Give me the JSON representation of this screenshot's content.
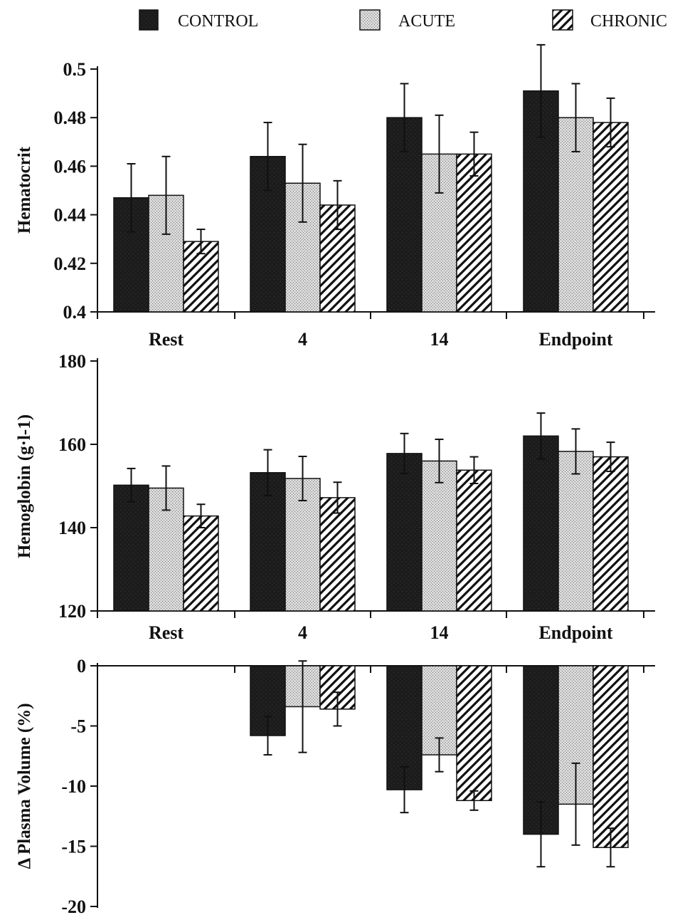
{
  "legend": [
    {
      "name": "CONTROL",
      "pattern": "control"
    },
    {
      "name": "ACUTE",
      "pattern": "acute"
    },
    {
      "name": "CHRONIC",
      "pattern": "chronic"
    }
  ],
  "colors": {
    "control": "#1e1e1e",
    "acute": "#d4d4d4",
    "chronic_stripe": "#111111",
    "background": "#ffffff"
  },
  "chart_data": [
    {
      "type": "bar",
      "title": "",
      "ylabel": "Hematocrit",
      "xlabel": "",
      "categories": [
        "Rest",
        "4",
        "14",
        "Endpoint"
      ],
      "ylim": [
        0.4,
        0.5
      ],
      "yticks": [
        "0.4",
        "0.42",
        "0.44",
        "0.46",
        "0.48",
        "0.5"
      ],
      "ytick_values": [
        0.4,
        0.42,
        0.44,
        0.46,
        0.48,
        0.5
      ],
      "series": [
        {
          "name": "CONTROL",
          "values": [
            0.447,
            0.464,
            0.48,
            0.491
          ],
          "errors": [
            0.014,
            0.014,
            0.014,
            0.019
          ]
        },
        {
          "name": "ACUTE",
          "values": [
            0.448,
            0.453,
            0.465,
            0.48
          ],
          "errors": [
            0.016,
            0.016,
            0.016,
            0.014
          ]
        },
        {
          "name": "CHRONIC",
          "values": [
            0.429,
            0.444,
            0.465,
            0.478
          ],
          "errors": [
            0.005,
            0.01,
            0.009,
            0.01
          ]
        }
      ]
    },
    {
      "type": "bar",
      "title": "",
      "ylabel": "Hemoglobin (g·l-1)",
      "xlabel": "",
      "categories": [
        "Rest",
        "4",
        "14",
        "Endpoint"
      ],
      "ylim": [
        120,
        180
      ],
      "yticks": [
        "120",
        "140",
        "160",
        "180"
      ],
      "ytick_values": [
        120,
        140,
        160,
        180
      ],
      "series": [
        {
          "name": "CONTROL",
          "values": [
            150.2,
            153.2,
            157.8,
            162.0
          ],
          "errors": [
            4.0,
            5.5,
            4.8,
            5.5
          ]
        },
        {
          "name": "ACUTE",
          "values": [
            149.5,
            151.8,
            156.0,
            158.3
          ],
          "errors": [
            5.3,
            5.3,
            5.2,
            5.4
          ]
        },
        {
          "name": "CHRONIC",
          "values": [
            142.8,
            147.2,
            153.8,
            157.0
          ],
          "errors": [
            2.8,
            3.7,
            3.2,
            3.5
          ]
        }
      ]
    },
    {
      "type": "bar",
      "title": "",
      "ylabel": "Δ Plasma Volume (%)",
      "xlabel": "",
      "categories": [
        "Rest",
        "4",
        "14",
        "Endpoint"
      ],
      "ylim": [
        -20,
        0
      ],
      "yticks": [
        "0",
        "-5",
        "-10",
        "-15",
        "-20"
      ],
      "ytick_values": [
        0,
        -5,
        -10,
        -15,
        -20
      ],
      "series": [
        {
          "name": "CONTROL",
          "values": [
            0,
            -5.8,
            -10.3,
            -14.0
          ],
          "errors": [
            0,
            1.6,
            1.9,
            2.7
          ]
        },
        {
          "name": "ACUTE",
          "values": [
            0,
            -3.4,
            -7.4,
            -11.5
          ],
          "errors": [
            0,
            3.8,
            1.4,
            3.4
          ]
        },
        {
          "name": "CHRONIC",
          "values": [
            0,
            -3.6,
            -11.2,
            -15.1
          ],
          "errors": [
            0,
            1.4,
            0.8,
            1.6
          ]
        }
      ]
    }
  ]
}
